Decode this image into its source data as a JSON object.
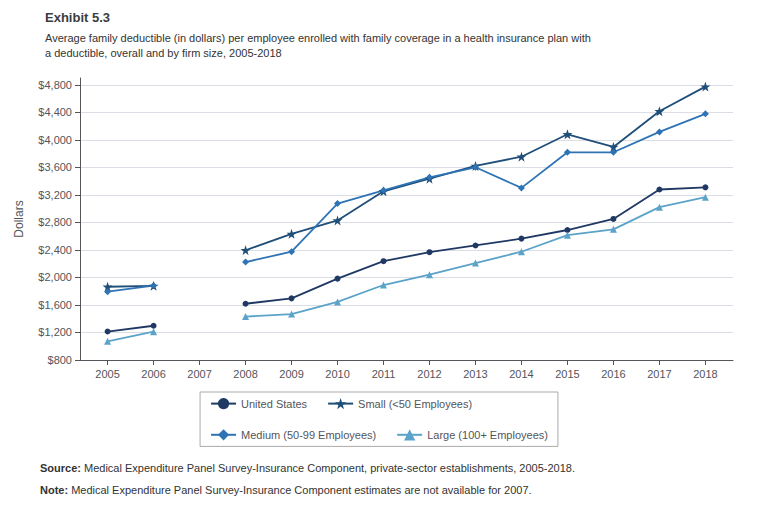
{
  "chart_data": {
    "type": "line",
    "title": "Exhibit 5.3",
    "subtitle": "Average family deductible (in dollars) per employee enrolled with family coverage in a health insurance plan with\na deductible, overall and by firm size, 2005-2018",
    "y_label": "Dollars",
    "x": [
      2005,
      2006,
      2007,
      2008,
      2009,
      2010,
      2011,
      2012,
      2013,
      2014,
      2015,
      2016,
      2017,
      2018
    ],
    "series": [
      {
        "name": "United States",
        "color": "#1f3864",
        "marker": "circle",
        "values": [
          1214,
          1298,
          null,
          1618,
          1696,
          1983,
          2237,
          2367,
          2465,
          2565,
          2690,
          2851,
          3279,
          3311
        ]
      },
      {
        "name": "Small (<50 Employees)",
        "color": "#1f4e79",
        "marker": "star",
        "values": [
          1865,
          1878,
          null,
          2396,
          2634,
          2829,
          3253,
          3436,
          3622,
          3756,
          4082,
          3897,
          4416,
          4775
        ]
      },
      {
        "name": "Medium (50-99 Employees)",
        "color": "#2e74b5",
        "marker": "diamond",
        "values": [
          1793,
          1882,
          null,
          2224,
          2374,
          3075,
          3267,
          3456,
          3602,
          3302,
          3820,
          3820,
          4116,
          4379
        ]
      },
      {
        "name": "Large (100+ Employees)",
        "color": "#5ba3c9",
        "marker": "triangle",
        "values": [
          1071,
          1211,
          null,
          1432,
          1467,
          1645,
          1890,
          2040,
          2210,
          2374,
          2615,
          2700,
          3022,
          3168
        ]
      }
    ],
    "xlim": [
      2004.4,
      2018.6
    ],
    "xticks": [
      2005,
      2006,
      2007,
      2008,
      2009,
      2010,
      2011,
      2012,
      2013,
      2014,
      2015,
      2016,
      2017,
      2018
    ],
    "ylim": [
      800,
      4900
    ],
    "yticks": [
      {
        "value": 800,
        "label": "$800"
      },
      {
        "value": 1200,
        "label": "$1,200"
      },
      {
        "value": 1600,
        "label": "$1,600"
      },
      {
        "value": 2000,
        "label": "$2,000"
      },
      {
        "value": 2400,
        "label": "$2,400"
      },
      {
        "value": 2800,
        "label": "$2,800"
      },
      {
        "value": 3200,
        "label": "$3,200"
      },
      {
        "value": 3600,
        "label": "$3,600"
      },
      {
        "value": 4000,
        "label": "$4,000"
      },
      {
        "value": 4400,
        "label": "$4,400"
      },
      {
        "value": 4800,
        "label": "$4,800"
      }
    ],
    "grid": true,
    "legend": "bottom",
    "annotations": [
      {
        "label": "Source:",
        "text": "Medical Expenditure Panel Survey-Insurance Component, private-sector establishments, 2005-2018."
      },
      {
        "label": "Note:",
        "text": "Medical Expenditure Panel Survey-Insurance Component estimates are not available for 2007."
      }
    ]
  }
}
